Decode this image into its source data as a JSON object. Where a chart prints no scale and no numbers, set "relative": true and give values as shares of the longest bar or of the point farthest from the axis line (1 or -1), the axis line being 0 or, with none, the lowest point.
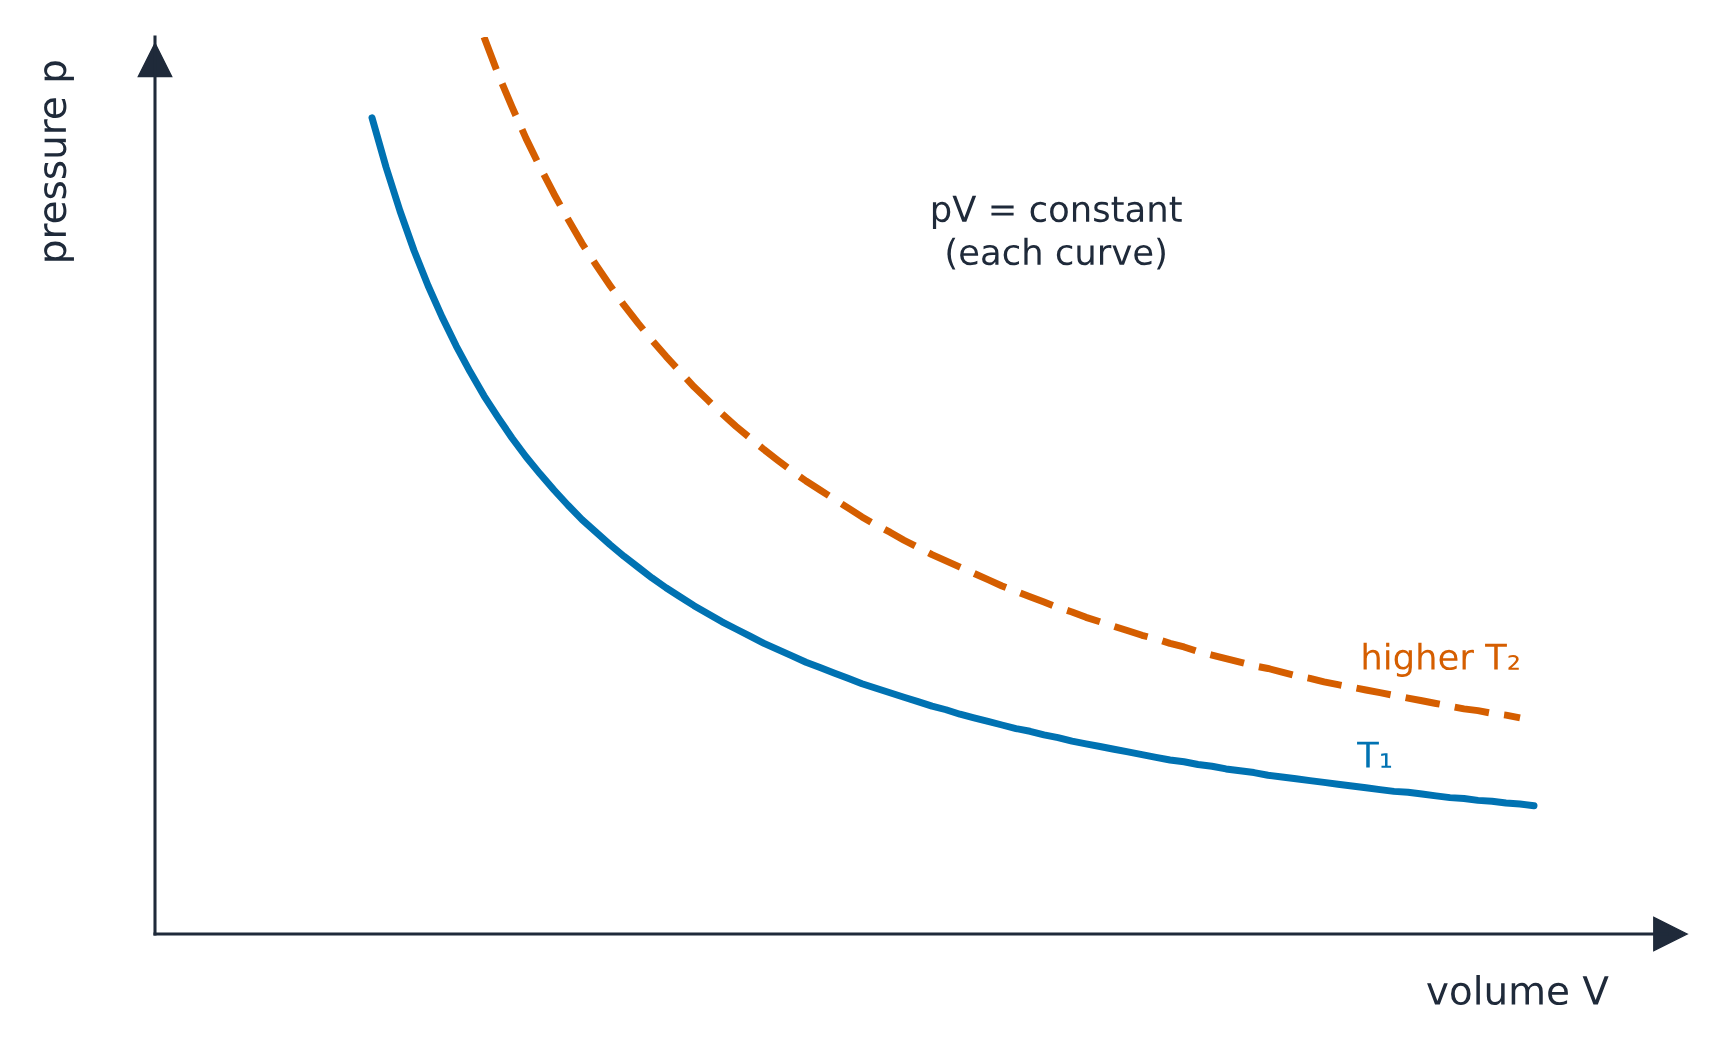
{
  "chart_data": {
    "type": "line",
    "relative": true,
    "xlabel": "volume V",
    "ylabel": "pressure p",
    "annotations": [
      "pV = constant",
      "(each curve)"
    ],
    "categories": [
      null,
      null,
      null,
      null,
      null,
      null,
      null,
      null,
      null,
      null,
      null,
      null,
      null,
      null,
      null,
      null,
      null,
      null,
      null,
      null,
      null,
      null,
      null,
      null,
      null,
      null,
      null,
      null,
      null,
      null,
      null,
      null,
      null,
      null,
      null,
      null,
      null,
      null,
      null,
      null,
      null,
      null,
      null,
      null,
      null,
      null,
      null,
      null,
      null,
      null,
      null,
      null,
      null,
      null,
      null,
      null,
      null,
      null,
      null,
      null,
      null,
      null,
      null,
      null,
      null,
      null,
      null,
      null,
      null,
      null,
      null,
      null,
      null,
      null,
      null,
      null,
      null,
      null,
      null,
      null,
      null,
      null,
      null,
      null,
      null,
      null,
      null,
      null,
      null,
      null,
      null,
      null,
      null,
      null,
      null,
      null,
      null,
      null,
      null,
      null,
      null,
      null,
      null,
      null,
      null,
      null,
      null,
      null
    ],
    "series": [
      {
        "name": "T₁",
        "color": "#0072b2",
        "line_style": "solid",
        "values": [
          null,
          null,
          null,
          null,
          null,
          null,
          null,
          null,
          null,
          null,
          null,
          null,
          null,
          null,
          null,
          0.91,
          0.855,
          0.806,
          0.762,
          0.723,
          0.688,
          0.656,
          0.627,
          0.6,
          0.576,
          0.553,
          0.532,
          0.513,
          0.495,
          0.478,
          0.462,
          0.448,
          0.434,
          0.421,
          0.409,
          0.397,
          0.386,
          0.376,
          0.366,
          0.357,
          0.348,
          0.34,
          0.332,
          0.324,
          0.317,
          0.31,
          0.303,
          0.297,
          0.291,
          0.285,
          0.279,
          0.274,
          0.269,
          0.264,
          0.259,
          0.254,
          0.25,
          0.245,
          0.241,
          0.237,
          0.233,
          0.229,
          0.226,
          0.222,
          0.219,
          0.215,
          0.212,
          0.209,
          0.206,
          0.203,
          0.2,
          0.197,
          0.194,
          0.192,
          0.189,
          0.187,
          0.184,
          0.182,
          0.18,
          0.177,
          0.175,
          0.173,
          0.171,
          0.169,
          0.167,
          0.165,
          0.163,
          0.161,
          0.159,
          0.158,
          0.156,
          0.154,
          0.152,
          0.151,
          0.149,
          0.148,
          0.146,
          0.145,
          0.143,
          null,
          null,
          null,
          null,
          null,
          null,
          null,
          null,
          null
        ]
      },
      {
        "name": "higher T₂",
        "color": "#d55e00",
        "line_style": "dashed",
        "values": [
          null,
          null,
          null,
          null,
          null,
          null,
          null,
          null,
          null,
          null,
          null,
          null,
          null,
          null,
          null,
          null,
          null,
          null,
          null,
          null,
          null,
          null,
          null,
          1.0,
          0.959,
          0.922,
          0.887,
          0.855,
          0.825,
          0.797,
          0.77,
          0.746,
          0.723,
          0.701,
          0.681,
          0.662,
          0.644,
          0.627,
          0.61,
          0.595,
          0.58,
          0.566,
          0.553,
          0.54,
          0.528,
          0.516,
          0.505,
          0.495,
          0.485,
          0.475,
          0.465,
          0.456,
          0.448,
          0.439,
          0.431,
          0.423,
          0.416,
          0.409,
          0.402,
          0.395,
          0.388,
          0.382,
          0.376,
          0.37,
          0.364,
          0.359,
          0.353,
          0.348,
          0.343,
          0.338,
          0.333,
          0.329,
          0.324,
          0.32,
          0.315,
          0.311,
          0.307,
          0.303,
          0.299,
          0.296,
          0.292,
          0.288,
          0.285,
          0.281,
          0.278,
          0.275,
          0.272,
          0.269,
          0.266,
          0.263,
          0.26,
          0.257,
          0.254,
          0.251,
          0.249,
          0.246,
          0.244,
          0.241,
          null,
          null,
          null,
          null,
          null,
          null,
          null,
          null,
          null,
          null
        ]
      }
    ]
  }
}
